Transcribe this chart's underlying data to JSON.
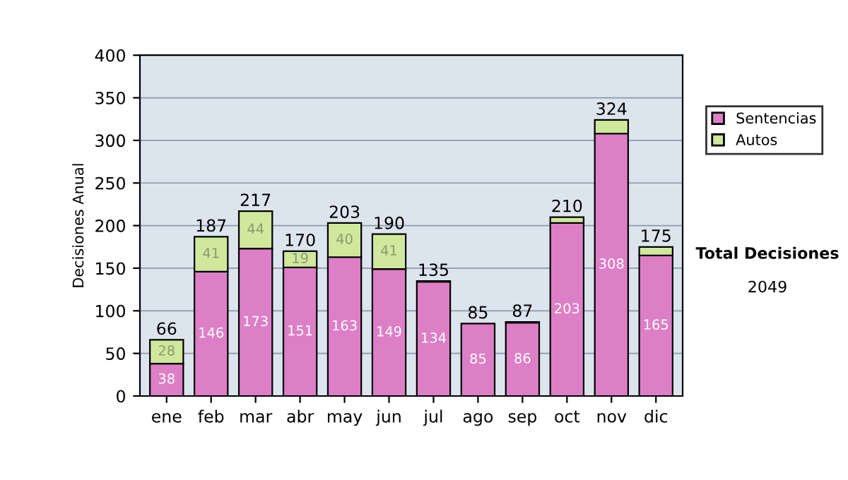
{
  "chart_data": {
    "type": "bar",
    "stacked": true,
    "ylabel": "Decisiones Anual",
    "categories": [
      "ene",
      "feb",
      "mar",
      "abr",
      "may",
      "jun",
      "jul",
      "ago",
      "sep",
      "oct",
      "nov",
      "dic"
    ],
    "series": [
      {
        "name": "Sentencias",
        "color": "#dd7fc6",
        "values": [
          38,
          146,
          173,
          151,
          163,
          149,
          134,
          85,
          86,
          203,
          308,
          165
        ],
        "value_labels": [
          "38",
          "146",
          "173",
          "151",
          "163",
          "149",
          "134",
          "85",
          "86",
          "203",
          "308",
          "165"
        ]
      },
      {
        "name": "Autos",
        "color": "#cfe89c",
        "values": [
          28,
          41,
          44,
          19,
          40,
          41,
          1,
          null,
          1,
          7,
          16,
          10
        ],
        "value_labels": [
          "28",
          "41",
          "44",
          "19",
          "40",
          "41",
          null,
          null,
          null,
          null,
          null,
          null
        ]
      }
    ],
    "totals": [
      "66",
      "187",
      "217",
      "170",
      "203",
      "190",
      "135",
      "85",
      "87",
      "210",
      "324",
      "175"
    ],
    "ylim": [
      0,
      400
    ],
    "yticks": [
      0,
      50,
      100,
      150,
      200,
      250,
      300,
      350,
      400
    ],
    "grid": "y",
    "legend": "right",
    "annotations": [
      "Total Decisiones",
      "2049"
    ]
  }
}
